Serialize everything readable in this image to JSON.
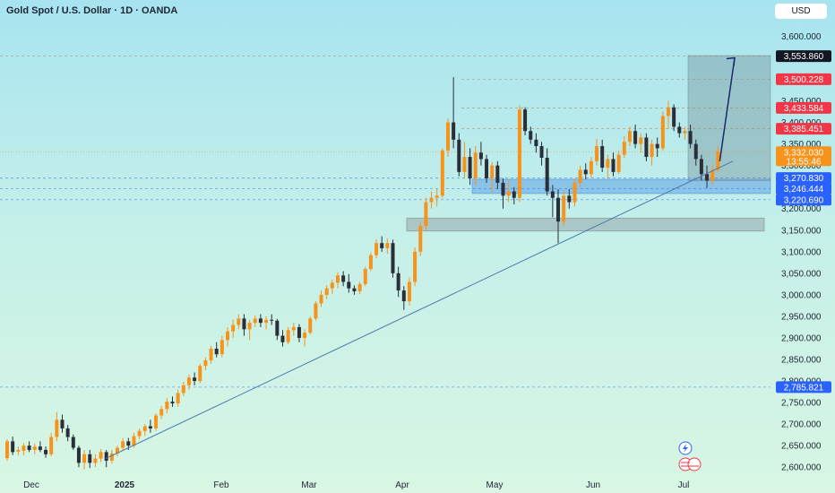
{
  "header": {
    "title": "Gold Spot / U.S. Dollar · 1D · OANDA",
    "currency": "USD"
  },
  "chart_data": {
    "type": "candlestick",
    "title": "Gold Spot / U.S. Dollar · 1D · OANDA",
    "ylim": [
      2590,
      3630
    ],
    "y_ticks": [
      {
        "value": 3600,
        "label": "3,600.000"
      },
      {
        "value": 3550,
        "label": "3,550.000"
      },
      {
        "value": 3500,
        "label": "3,500.000"
      },
      {
        "value": 3450,
        "label": "3,450.000"
      },
      {
        "value": 3400,
        "label": "3,400.000"
      },
      {
        "value": 3350,
        "label": "3,350.000"
      },
      {
        "value": 3300,
        "label": "3,300.000"
      },
      {
        "value": 3250,
        "label": "3,250.000"
      },
      {
        "value": 3200,
        "label": "3,200.000"
      },
      {
        "value": 3150,
        "label": "3,150.000"
      },
      {
        "value": 3100,
        "label": "3,100.000"
      },
      {
        "value": 3050,
        "label": "3,050.000"
      },
      {
        "value": 3000,
        "label": "3,000.000"
      },
      {
        "value": 2950,
        "label": "2,950.000"
      },
      {
        "value": 2900,
        "label": "2,900.000"
      },
      {
        "value": 2850,
        "label": "2,850.000"
      },
      {
        "value": 2800,
        "label": "2,800.000"
      },
      {
        "value": 2750,
        "label": "2,750.000"
      },
      {
        "value": 2700,
        "label": "2,700.000"
      },
      {
        "value": 2650,
        "label": "2,650.000"
      },
      {
        "value": 2600,
        "label": "2,600.000"
      }
    ],
    "x_labels": [
      "Dec",
      "2025",
      "Feb",
      "Mar",
      "Apr",
      "May",
      "Jun",
      "Jul"
    ],
    "price_labels": [
      {
        "value": 3553.86,
        "label": "3,553.860",
        "color": "#131722"
      },
      {
        "value": 3500.228,
        "label": "3,500.228",
        "color": "#f23645"
      },
      {
        "value": 3433.584,
        "label": "3,433.584",
        "color": "#f23645"
      },
      {
        "value": 3385.451,
        "label": "3,385.451",
        "color": "#f23645"
      },
      {
        "value": 3332.03,
        "label": "3,332.030",
        "color": "#f7931a",
        "sublabel": "13:55:46"
      },
      {
        "value": 3270.83,
        "label": "3,270.830",
        "color": "#2962ff"
      },
      {
        "value": 3246.444,
        "label": "3,246.444",
        "color": "#2962ff"
      },
      {
        "value": 3220.69,
        "label": "3,220.690",
        "color": "#2962ff"
      },
      {
        "value": 2785.821,
        "label": "2,785.821",
        "color": "#2962ff"
      }
    ],
    "zones": [
      {
        "name": "support-zone-upper",
        "y_range": [
          3235,
          3268
        ],
        "color": "#4a90e2"
      },
      {
        "name": "support-zone-lower",
        "y_range": [
          3148,
          3178
        ],
        "color": "#9aa3a8"
      },
      {
        "name": "target-box",
        "y_range": [
          3265,
          3555
        ],
        "color": "#8aa6ad"
      }
    ],
    "series": [
      {
        "type": "ohlc",
        "data": [
          [
            2621,
            2665,
            2615,
            2660
          ],
          [
            2660,
            2671,
            2628,
            2635
          ],
          [
            2636,
            2648,
            2628,
            2640
          ],
          [
            2638,
            2656,
            2628,
            2650
          ],
          [
            2650,
            2660,
            2635,
            2640
          ],
          [
            2640,
            2655,
            2630,
            2648
          ],
          [
            2648,
            2660,
            2635,
            2640
          ],
          [
            2640,
            2648,
            2622,
            2630
          ],
          [
            2630,
            2680,
            2625,
            2670
          ],
          [
            2670,
            2728,
            2660,
            2710
          ],
          [
            2710,
            2722,
            2680,
            2690
          ],
          [
            2690,
            2698,
            2660,
            2670
          ],
          [
            2670,
            2676,
            2640,
            2645
          ],
          [
            2645,
            2650,
            2600,
            2610
          ],
          [
            2610,
            2640,
            2595,
            2630
          ],
          [
            2630,
            2640,
            2598,
            2610
          ],
          [
            2610,
            2630,
            2600,
            2620
          ],
          [
            2620,
            2642,
            2612,
            2635
          ],
          [
            2635,
            2640,
            2600,
            2615
          ],
          [
            2615,
            2640,
            2608,
            2632
          ],
          [
            2632,
            2650,
            2625,
            2645
          ],
          [
            2645,
            2668,
            2640,
            2660
          ],
          [
            2660,
            2668,
            2640,
            2650
          ],
          [
            2650,
            2680,
            2645,
            2672
          ],
          [
            2672,
            2690,
            2665,
            2684
          ],
          [
            2684,
            2700,
            2672,
            2695
          ],
          [
            2695,
            2710,
            2680,
            2690
          ],
          [
            2690,
            2725,
            2684,
            2720
          ],
          [
            2720,
            2742,
            2712,
            2735
          ],
          [
            2735,
            2760,
            2725,
            2752
          ],
          [
            2752,
            2764,
            2740,
            2748
          ],
          [
            2748,
            2780,
            2740,
            2772
          ],
          [
            2772,
            2798,
            2765,
            2790
          ],
          [
            2790,
            2815,
            2780,
            2808
          ],
          [
            2808,
            2820,
            2790,
            2800
          ],
          [
            2800,
            2840,
            2795,
            2835
          ],
          [
            2835,
            2855,
            2825,
            2848
          ],
          [
            2848,
            2882,
            2840,
            2875
          ],
          [
            2875,
            2890,
            2855,
            2862
          ],
          [
            2862,
            2905,
            2855,
            2895
          ],
          [
            2895,
            2925,
            2880,
            2915
          ],
          [
            2915,
            2942,
            2900,
            2930
          ],
          [
            2930,
            2955,
            2920,
            2945
          ],
          [
            2945,
            2955,
            2905,
            2920
          ],
          [
            2920,
            2942,
            2895,
            2935
          ],
          [
            2935,
            2952,
            2925,
            2945
          ],
          [
            2945,
            2955,
            2925,
            2935
          ],
          [
            2935,
            2950,
            2920,
            2942
          ],
          [
            2942,
            2955,
            2930,
            2940
          ],
          [
            2940,
            2944,
            2895,
            2905
          ],
          [
            2905,
            2918,
            2880,
            2890
          ],
          [
            2890,
            2925,
            2885,
            2918
          ],
          [
            2918,
            2935,
            2905,
            2925
          ],
          [
            2925,
            2932,
            2890,
            2900
          ],
          [
            2900,
            2920,
            2880,
            2912
          ],
          [
            2912,
            2950,
            2908,
            2945
          ],
          [
            2945,
            2985,
            2940,
            2980
          ],
          [
            2980,
            3010,
            2972,
            3000
          ],
          [
            3000,
            3022,
            2990,
            3015
          ],
          [
            3015,
            3035,
            3002,
            3028
          ],
          [
            3028,
            3052,
            3015,
            3045
          ],
          [
            3045,
            3055,
            3020,
            3030
          ],
          [
            3030,
            3048,
            3005,
            3015
          ],
          [
            3015,
            3022,
            3000,
            3008
          ],
          [
            3008,
            3030,
            3002,
            3025
          ],
          [
            3025,
            3065,
            3020,
            3060
          ],
          [
            3060,
            3098,
            3055,
            3092
          ],
          [
            3092,
            3128,
            3085,
            3120
          ],
          [
            3120,
            3136,
            3100,
            3108
          ],
          [
            3108,
            3130,
            3095,
            3120
          ],
          [
            3120,
            3128,
            3040,
            3050
          ],
          [
            3050,
            3065,
            2995,
            3010
          ],
          [
            3010,
            3020,
            2965,
            2985
          ],
          [
            2985,
            3040,
            2975,
            3030
          ],
          [
            3030,
            3110,
            3020,
            3100
          ],
          [
            3100,
            3170,
            3090,
            3160
          ],
          [
            3160,
            3225,
            3150,
            3215
          ],
          [
            3215,
            3240,
            3200,
            3225
          ],
          [
            3225,
            3245,
            3205,
            3230
          ],
          [
            3230,
            3340,
            3225,
            3335
          ],
          [
            3335,
            3410,
            3320,
            3400
          ],
          [
            3400,
            3505,
            3340,
            3360
          ],
          [
            3360,
            3375,
            3275,
            3285
          ],
          [
            3285,
            3355,
            3270,
            3320
          ],
          [
            3320,
            3340,
            3255,
            3270
          ],
          [
            3270,
            3345,
            3255,
            3330
          ],
          [
            3330,
            3355,
            3300,
            3315
          ],
          [
            3315,
            3325,
            3260,
            3270
          ],
          [
            3270,
            3308,
            3240,
            3300
          ],
          [
            3300,
            3310,
            3245,
            3260
          ],
          [
            3260,
            3270,
            3200,
            3230
          ],
          [
            3230,
            3265,
            3215,
            3240
          ],
          [
            3240,
            3250,
            3210,
            3225
          ],
          [
            3225,
            3440,
            3215,
            3430
          ],
          [
            3430,
            3435,
            3370,
            3380
          ],
          [
            3380,
            3390,
            3350,
            3360
          ],
          [
            3360,
            3375,
            3330,
            3345
          ],
          [
            3345,
            3355,
            3300,
            3318
          ],
          [
            3318,
            3340,
            3230,
            3240
          ],
          [
            3240,
            3255,
            3180,
            3225
          ],
          [
            3225,
            3245,
            3120,
            3170
          ],
          [
            3170,
            3240,
            3160,
            3230
          ],
          [
            3230,
            3245,
            3200,
            3215
          ],
          [
            3215,
            3270,
            3205,
            3260
          ],
          [
            3260,
            3300,
            3250,
            3290
          ],
          [
            3290,
            3305,
            3268,
            3280
          ],
          [
            3280,
            3320,
            3270,
            3310
          ],
          [
            3310,
            3362,
            3300,
            3345
          ],
          [
            3345,
            3360,
            3285,
            3295
          ],
          [
            3295,
            3325,
            3270,
            3315
          ],
          [
            3315,
            3330,
            3275,
            3285
          ],
          [
            3285,
            3335,
            3280,
            3325
          ],
          [
            3325,
            3368,
            3318,
            3355
          ],
          [
            3355,
            3390,
            3345,
            3380
          ],
          [
            3380,
            3395,
            3340,
            3350
          ],
          [
            3350,
            3375,
            3330,
            3365
          ],
          [
            3365,
            3375,
            3310,
            3320
          ],
          [
            3320,
            3360,
            3300,
            3350
          ],
          [
            3350,
            3365,
            3320,
            3340
          ],
          [
            3340,
            3425,
            3335,
            3415
          ],
          [
            3415,
            3450,
            3385,
            3435
          ],
          [
            3435,
            3442,
            3380,
            3390
          ],
          [
            3390,
            3400,
            3365,
            3375
          ],
          [
            3375,
            3390,
            3360,
            3380
          ],
          [
            3380,
            3395,
            3340,
            3350
          ],
          [
            3350,
            3360,
            3300,
            3315
          ],
          [
            3315,
            3325,
            3265,
            3280
          ],
          [
            3280,
            3300,
            3248,
            3265
          ],
          [
            3265,
            3300,
            3255,
            3290
          ],
          [
            3290,
            3345,
            3285,
            3333
          ]
        ]
      }
    ],
    "trendline": {
      "from": {
        "x": "2024-12-30",
        "y": 2620
      },
      "to": {
        "x": "2025-07-05",
        "y": 3310
      }
    }
  }
}
